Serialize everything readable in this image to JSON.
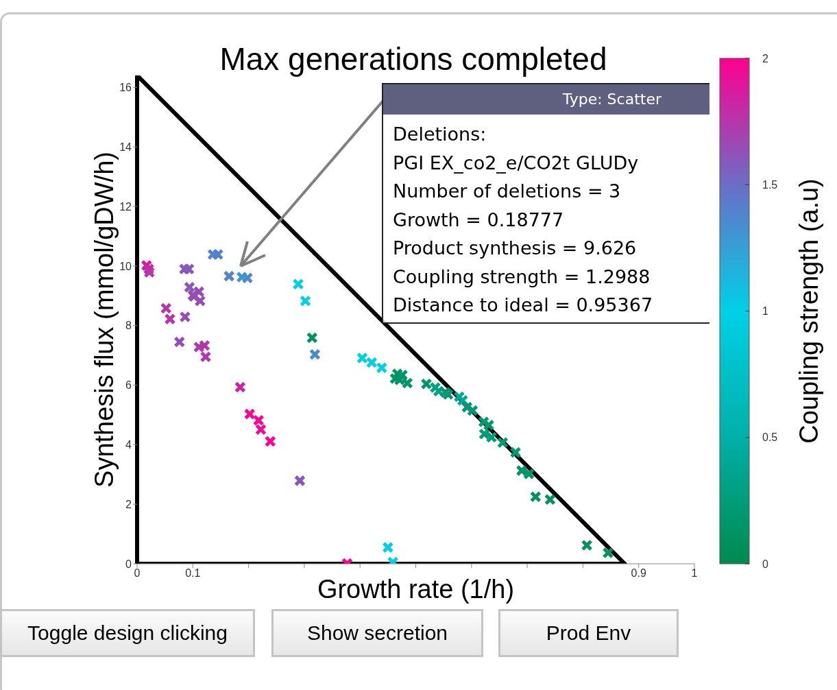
{
  "chart_data": {
    "type": "scatter",
    "title": "Max generations completed",
    "xlabel": "Growth rate (1/h)",
    "ylabel": "Synthesis flux (mmol/gDW/h)",
    "clabel": "Coupling strength (a.u)",
    "xlim": [
      0,
      1
    ],
    "ylim": [
      0,
      16.4
    ],
    "xticks": [
      0,
      0.1,
      {
        "value": 0.2,
        "label": null
      },
      {
        "value": 0.3,
        "label": null
      },
      {
        "value": 0.4,
        "label": null
      },
      {
        "value": 0.5,
        "label": null
      },
      {
        "value": 0.6,
        "label": null
      },
      {
        "value": 0.7,
        "label": null
      },
      {
        "value": 0.8,
        "label": null
      },
      0.9,
      1
    ],
    "yticks": [
      0,
      2,
      4,
      6,
      8,
      10,
      12,
      14,
      16
    ],
    "clim": [
      0,
      2
    ],
    "cticks": [
      0,
      0.5,
      1,
      1.5,
      2
    ],
    "series": [
      {
        "type": "line",
        "color": "#000000",
        "x": [
          0,
          0.875
        ],
        "values": [
          16.4,
          0
        ]
      },
      {
        "type": "line",
        "color": "#000000",
        "x": [
          0,
          0.875
        ],
        "values": [
          0,
          0
        ]
      },
      {
        "marker": "cross",
        "cvalues": [
          1.9,
          1.8,
          1.75,
          1.6,
          1.6,
          1.4,
          1.4,
          1.4,
          1.2988,
          1.35,
          1.6,
          1.65,
          1.65,
          1.65,
          1.65,
          1.75,
          1.75,
          1.65,
          1.65,
          1.75,
          1.75,
          1.75,
          1,
          1,
          0.1,
          1.35,
          1.85,
          1.95,
          2,
          1.95,
          2,
          1.6,
          1,
          1,
          1,
          0.15,
          0.15,
          0.15,
          0.15,
          0.15,
          0.15,
          0.3,
          0.3,
          0.2,
          0.2,
          0.4,
          0.4,
          0.2,
          0.2,
          0.2,
          0.2,
          0.25,
          0.25,
          0.2,
          0.2,
          0.15,
          0.15,
          0.1,
          0.1,
          1,
          1,
          2,
          0.1,
          0.1
        ],
        "x": [
          0.017,
          0.021,
          0.022,
          0.085,
          0.093,
          0.136,
          0.145,
          0.165,
          0.188,
          0.198,
          0.094,
          0.1,
          0.111,
          0.102,
          0.113,
          0.052,
          0.059,
          0.086,
          0.076,
          0.111,
          0.121,
          0.123,
          0.289,
          0.302,
          0.314,
          0.319,
          0.185,
          0.202,
          0.218,
          0.222,
          0.239,
          0.292,
          0.404,
          0.421,
          0.439,
          0.467,
          0.476,
          0.463,
          0.471,
          0.485,
          0.519,
          0.535,
          0.541,
          0.553,
          0.558,
          0.578,
          0.584,
          0.592,
          0.602,
          0.622,
          0.631,
          0.623,
          0.636,
          0.656,
          0.679,
          0.69,
          0.703,
          0.715,
          0.741,
          0.45,
          0.459,
          0.377,
          0.807,
          0.845
        ],
        "values": [
          10.02,
          9.9,
          9.79,
          9.9,
          9.9,
          10.39,
          10.39,
          9.66,
          9.63,
          9.6,
          9.29,
          9.02,
          9.14,
          8.98,
          8.83,
          8.58,
          8.22,
          8.29,
          7.45,
          7.28,
          7.33,
          6.95,
          9.39,
          8.83,
          7.59,
          7.03,
          5.93,
          5.03,
          4.82,
          4.51,
          4.11,
          2.79,
          6.91,
          6.76,
          6.58,
          6.38,
          6.34,
          6.22,
          6.18,
          6.07,
          6.04,
          5.92,
          5.8,
          5.76,
          5.69,
          5.61,
          5.49,
          5.26,
          5.15,
          4.77,
          4.66,
          4.36,
          4.25,
          4.07,
          3.74,
          3.13,
          3.02,
          2.25,
          2.16,
          0.55,
          0.06,
          0.01,
          0.62,
          0.37
        ],
        "colors": [
          "#e1169b",
          "#c32ca6",
          "#b537ab",
          "#8858bb",
          "#8858bb",
          "#5582cc",
          "#5582cc",
          "#5582cc",
          "#3f95d3",
          "#4a8bd0",
          "#8858bb",
          "#974db6",
          "#974db6",
          "#974db6",
          "#974db6",
          "#b537ab",
          "#b537ab",
          "#974db6",
          "#974db6",
          "#b537ab",
          "#b537ab",
          "#b537ab",
          "#00d0e6",
          "#00d0e6",
          "#009260",
          "#4a8bd0",
          "#d221a0",
          "#f00b95",
          "#ff0090",
          "#f00b95",
          "#ff0090",
          "#8858bb",
          "#00d0e6",
          "#00d0e6",
          "#00d0e6",
          "#009569",
          "#009569",
          "#009569",
          "#009569",
          "#009569",
          "#009569",
          "#00a184",
          "#00a184",
          "#009972",
          "#009972",
          "#00a896",
          "#00a896",
          "#009972",
          "#009972",
          "#009972",
          "#009972",
          "#009d7b",
          "#009d7b",
          "#009972",
          "#009972",
          "#009569",
          "#009569",
          "#009260",
          "#009260",
          "#00d0e6",
          "#00d0e6",
          "#ff0090",
          "#009260",
          "#009260"
        ]
      }
    ],
    "annotations": [
      "Type: Scatter",
      "Deletions:\nPGI EX_co2_e/CO2t GLUDy\nNumber of deletions = 3\nGrowth = 0.18777\nProduct synthesis = 9.626\nCoupling strength = 1.2988\nDistance to ideal = 0.95367",
      "Toggle design clicking",
      "Show secretion",
      "Prod Env"
    ]
  }
}
